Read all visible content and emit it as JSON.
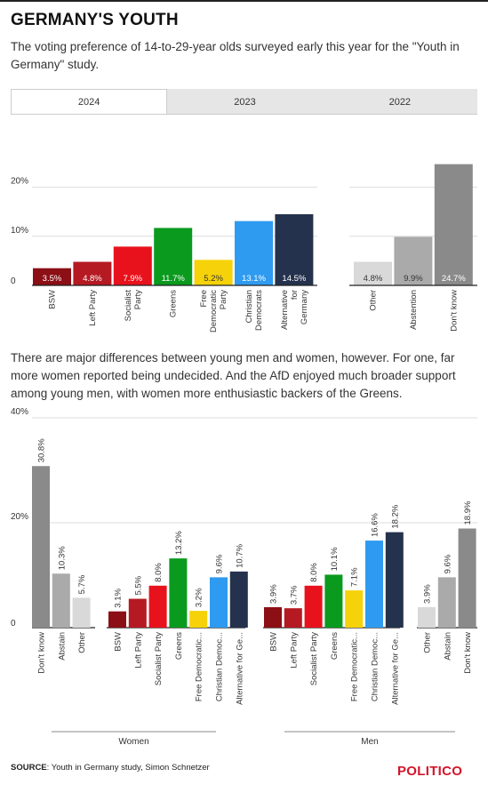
{
  "header": {
    "title": "GERMANY'S YOUTH",
    "subtitle": "The voting preference of 14-to-29-year olds surveyed early this year for the \"Youth in Germany\" study."
  },
  "tabs": [
    {
      "label": "2024",
      "active": true
    },
    {
      "label": "2023",
      "active": false
    },
    {
      "label": "2022",
      "active": false
    }
  ],
  "middle_text": "There are major differences between young men and women, however. For one, far more women reported being undecided. And the AfD enjoyed much broader support among young men, with women more enthusiastic backers of the Greens.",
  "footer": {
    "source_label": "SOURCE",
    "source_text": ": Youth in Germany study, Simon Schnetzer",
    "logo": "POLITICO"
  },
  "colors": {
    "BSW": "#8b0f15",
    "Left Party": "#b51a22",
    "Socialist Party": "#e8121c",
    "Greens": "#0a9a1e",
    "Free Democratic Party": "#f5d20a",
    "Christian Democrats": "#2f9bf0",
    "Alternative for Germany": "#25324d",
    "Other": "#d9d9d9",
    "Abstention": "#aaaaaa",
    "Don't know": "#8a8a8a"
  },
  "chart_data": [
    {
      "type": "bar",
      "title": "2024",
      "ylim": [
        0,
        25
      ],
      "yticks": [
        {
          "value": 0,
          "label": "0"
        },
        {
          "value": 10,
          "label": "10%"
        },
        {
          "value": 20,
          "label": "20%"
        }
      ],
      "groups": [
        {
          "name": "Parties",
          "bars": [
            {
              "category": "BSW",
              "label_lines": [
                "BSW"
              ],
              "value": 3.5,
              "value_label": "3.5%",
              "color": "#8b0f15"
            },
            {
              "category": "Left Party",
              "label_lines": [
                "Left Party"
              ],
              "value": 4.8,
              "value_label": "4.8%",
              "color": "#b51a22"
            },
            {
              "category": "Socialist Party",
              "label_lines": [
                "Socialist",
                "Party"
              ],
              "value": 7.9,
              "value_label": "7.9%",
              "color": "#e8121c"
            },
            {
              "category": "Greens",
              "label_lines": [
                "Greens"
              ],
              "value": 11.7,
              "value_label": "11.7%",
              "color": "#0a9a1e"
            },
            {
              "category": "Free Democratic Party",
              "label_lines": [
                "Free",
                "Democratic",
                "Party"
              ],
              "value": 5.2,
              "value_label": "5.2%",
              "color": "#f5d20a"
            },
            {
              "category": "Christian Democrats",
              "label_lines": [
                "Christian",
                "Democrats"
              ],
              "value": 13.1,
              "value_label": "13.1%",
              "color": "#2f9bf0"
            },
            {
              "category": "Alternative for Germany",
              "label_lines": [
                "Alternative",
                "for",
                "Germany"
              ],
              "value": 14.5,
              "value_label": "14.5%",
              "color": "#25324d"
            }
          ]
        },
        {
          "name": "Other responses",
          "bars": [
            {
              "category": "Other",
              "label_lines": [
                "Other"
              ],
              "value": 4.8,
              "value_label": "4.8%",
              "color": "#d9d9d9"
            },
            {
              "category": "Abstention",
              "label_lines": [
                "Abstention"
              ],
              "value": 9.9,
              "value_label": "9.9%",
              "color": "#aaaaaa"
            },
            {
              "category": "Don't know",
              "label_lines": [
                "Don't know"
              ],
              "value": 24.7,
              "value_label": "24.7%",
              "color": "#8a8a8a"
            }
          ]
        }
      ]
    },
    {
      "type": "bar",
      "ylim": [
        0,
        40
      ],
      "yticks": [
        {
          "value": 0,
          "label": "0"
        },
        {
          "value": 20,
          "label": "20%"
        },
        {
          "value": 40,
          "label": "40%"
        }
      ],
      "sections": [
        {
          "name": "Women",
          "groups": [
            {
              "bars": [
                {
                  "category": "Don't know",
                  "value": 30.8,
                  "value_label": "30.8%",
                  "color": "#8a8a8a"
                },
                {
                  "category": "Abstain",
                  "value": 10.3,
                  "value_label": "10.3%",
                  "color": "#aaaaaa"
                },
                {
                  "category": "Other",
                  "value": 5.7,
                  "value_label": "5.7%",
                  "color": "#d9d9d9"
                }
              ]
            },
            {
              "bars": [
                {
                  "category": "BSW",
                  "value": 3.1,
                  "value_label": "3.1%",
                  "color": "#8b0f15"
                },
                {
                  "category": "Left Party",
                  "value": 5.5,
                  "value_label": "5.5%",
                  "color": "#b51a22"
                },
                {
                  "category": "Socialist Party",
                  "value": 8.0,
                  "value_label": "8.0%",
                  "color": "#e8121c"
                },
                {
                  "category": "Greens",
                  "value": 13.2,
                  "value_label": "13.2%",
                  "color": "#0a9a1e"
                },
                {
                  "category": "Free Democratic...",
                  "value": 3.2,
                  "value_label": "3.2%",
                  "color": "#f5d20a"
                },
                {
                  "category": "Christian Democ...",
                  "value": 9.6,
                  "value_label": "9.6%",
                  "color": "#2f9bf0"
                },
                {
                  "category": "Alternative for Ge...",
                  "value": 10.7,
                  "value_label": "10.7%",
                  "color": "#25324d"
                }
              ]
            }
          ]
        },
        {
          "name": "Men",
          "groups": [
            {
              "bars": [
                {
                  "category": "BSW",
                  "value": 3.9,
                  "value_label": "3.9%",
                  "color": "#8b0f15"
                },
                {
                  "category": "Left Party",
                  "value": 3.7,
                  "value_label": "3.7%",
                  "color": "#b51a22"
                },
                {
                  "category": "Socialist Party",
                  "value": 8.0,
                  "value_label": "8.0%",
                  "color": "#e8121c"
                },
                {
                  "category": "Greens",
                  "value": 10.1,
                  "value_label": "10.1%",
                  "color": "#0a9a1e"
                },
                {
                  "category": "Free Democratic...",
                  "value": 7.1,
                  "value_label": "7.1%",
                  "color": "#f5d20a"
                },
                {
                  "category": "Christian Democ...",
                  "value": 16.6,
                  "value_label": "16.6%",
                  "color": "#2f9bf0"
                },
                {
                  "category": "Alternative for Ge...",
                  "value": 18.2,
                  "value_label": "18.2%",
                  "color": "#25324d"
                }
              ]
            },
            {
              "bars": [
                {
                  "category": "Other",
                  "value": 3.9,
                  "value_label": "3.9%",
                  "color": "#d9d9d9"
                },
                {
                  "category": "Abstain",
                  "value": 9.6,
                  "value_label": "9.6%",
                  "color": "#aaaaaa"
                },
                {
                  "category": "Don't know",
                  "value": 18.9,
                  "value_label": "18.9%",
                  "color": "#8a8a8a"
                }
              ]
            }
          ]
        }
      ]
    }
  ]
}
